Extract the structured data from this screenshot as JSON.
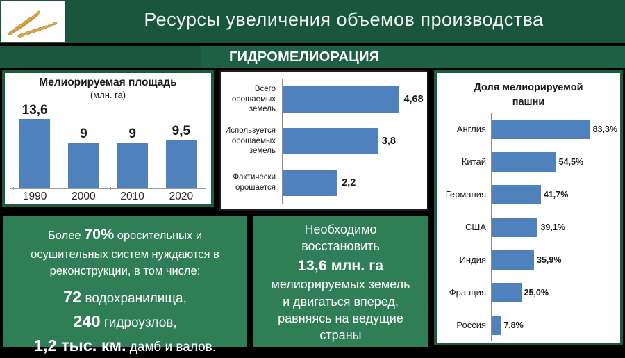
{
  "colors": {
    "header_green": "#19563D",
    "band_green": "#1E6043",
    "infobox_green": "#2F7E55",
    "panel_border_green": "#1B5B40",
    "bar_blue": "#4F81BD",
    "axis_gray": "#8a8a8a"
  },
  "header": {
    "title": "Ресурсы увеличения объемов производства",
    "logo": "wheat-ears"
  },
  "section": {
    "title": "ГИДРОМЕЛИОРАЦИЯ"
  },
  "chart_data": [
    {
      "id": "meliorated-area",
      "type": "bar",
      "title": "Мелиорируемая площадь",
      "subtitle": "(млн. га)",
      "categories": [
        "1990",
        "2000",
        "2010",
        "2020"
      ],
      "values": [
        13.6,
        9,
        9,
        9.5
      ],
      "value_labels": [
        "13,6",
        "9",
        "9",
        "9,5"
      ],
      "ylim": [
        0,
        15
      ],
      "grid": false,
      "bar_color": "#4F81BD"
    },
    {
      "id": "irrigated-lands",
      "type": "bar-horizontal",
      "title": "",
      "categories": [
        "Всего орошаемых земель",
        "Используется орошаемых земель",
        "Фактически орошается"
      ],
      "values": [
        4.68,
        3.8,
        2.2
      ],
      "value_labels": [
        "4,68",
        "3,8",
        "2,2"
      ],
      "xlim": [
        0,
        5.5
      ],
      "grid": false,
      "bar_color": "#4F81BD"
    },
    {
      "id": "share-of-meliorated-arable-land",
      "type": "bar-horizontal",
      "title": "Доля мелиорируемой пашни",
      "categories": [
        "Англия",
        "Китай",
        "Германия",
        "США",
        "Индия",
        "Франция",
        "Россия"
      ],
      "values": [
        83.3,
        54.5,
        41.7,
        39.1,
        35.9,
        25.0,
        7.8
      ],
      "value_labels": [
        "83,3%",
        "54,5%",
        "41,7%",
        "39,1%",
        "35,9%",
        "25,0%",
        "7,8%"
      ],
      "xlim": [
        0,
        100
      ],
      "grid": false,
      "bar_color": "#4F81BD"
    }
  ],
  "info_boxes": {
    "left": {
      "line1_prefix": "Более ",
      "line1_bold": "70%",
      "line1_suffix": " оросительных и",
      "line2": "осушительных систем нуждаются в",
      "line3": "реконструкции, в том числе:",
      "items": [
        {
          "number": "72",
          "text": " водохранилища,"
        },
        {
          "number": "240",
          "text": " гидроузлов,"
        },
        {
          "number": "1,2 тыс. км.",
          "text": " дамб и валов."
        }
      ]
    },
    "middle": {
      "lines": [
        "Необходимо",
        "восстановить"
      ],
      "highlight": "13,6 млн. га",
      "tail": "мелиорируемых земель и двигаться вперед, равняясь на ведущие страны"
    }
  }
}
